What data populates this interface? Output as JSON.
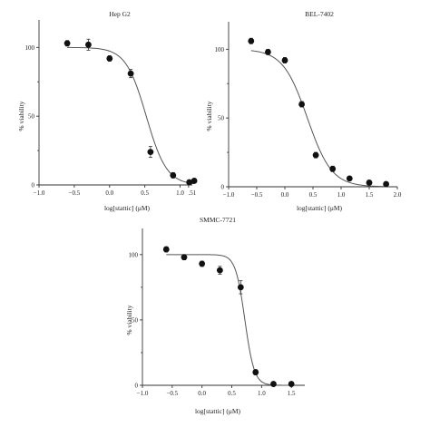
{
  "chart_data": [
    {
      "type": "scatter",
      "title": "Hep G2",
      "xlabel": "log[stattic] (μM)",
      "ylabel": "% viability",
      "xlim": [
        -1.0,
        1.25
      ],
      "ylim": [
        0,
        120
      ],
      "xticks": [
        -1.0,
        -0.5,
        0.0,
        0.5,
        1.0
      ],
      "xtick_labels": [
        "−1.0",
        "−0.5",
        "0.0",
        "0.5",
        "1.0"
      ],
      "extra_tick_label": ".51",
      "yticks": [
        0,
        50,
        100
      ],
      "series": [
        {
          "x": [
            -0.6,
            -0.3,
            0.0,
            0.3,
            0.58,
            0.9,
            1.13,
            1.2
          ],
          "y": [
            103,
            102,
            92,
            81,
            24,
            7,
            2,
            3
          ],
          "err": [
            2,
            4,
            2,
            3,
            4,
            2,
            1,
            1
          ]
        }
      ],
      "fit": {
        "top": 100,
        "bottom": 0,
        "logIC50": 0.52,
        "hill": 3.0
      },
      "grid": false
    },
    {
      "type": "scatter",
      "title": "BEL-7402",
      "xlabel": "log[stattic] (μM)",
      "ylabel": "% viability",
      "xlim": [
        -1.0,
        2.0
      ],
      "ylim": [
        0,
        120
      ],
      "xticks": [
        -1.0,
        -0.5,
        0.0,
        0.5,
        1.0,
        1.5,
        2.0
      ],
      "xtick_labels": [
        "−1.0",
        "−0.5",
        "0.0",
        "0.5",
        "1.0",
        "1.5",
        "2.0"
      ],
      "yticks": [
        0,
        50,
        100
      ],
      "series": [
        {
          "x": [
            -0.6,
            -0.3,
            0.0,
            0.3,
            0.55,
            0.85,
            1.15,
            1.5,
            1.8
          ],
          "y": [
            106,
            98,
            92,
            60,
            23,
            13,
            6,
            3,
            2
          ],
          "err": [
            2,
            2,
            2,
            2,
            2,
            2,
            1,
            1,
            1
          ]
        }
      ],
      "fit": {
        "top": 100,
        "bottom": 0,
        "logIC50": 0.4,
        "hill": 2.0
      },
      "grid": false
    },
    {
      "type": "scatter",
      "title": "SMMC-7721",
      "xlabel": "log[stattic] (μM)",
      "ylabel": "% viability",
      "xlim": [
        -1.0,
        2.0
      ],
      "ylim": [
        0,
        120
      ],
      "xticks": [
        -1.0,
        -0.5,
        0.0,
        0.5,
        1.0,
        1.5
      ],
      "xtick_labels": [
        "−1.0",
        "−0.5",
        "0.0",
        "0.5",
        "1.0",
        "1.5"
      ],
      "yticks": [
        0,
        50,
        100
      ],
      "series": [
        {
          "x": [
            -0.6,
            -0.3,
            0.0,
            0.3,
            0.65,
            0.9,
            1.2,
            1.5
          ],
          "y": [
            104,
            98,
            93,
            88,
            75,
            10,
            1,
            1
          ],
          "err": [
            2,
            2,
            2,
            3,
            5,
            2,
            1,
            1
          ]
        }
      ],
      "fit": {
        "top": 100,
        "bottom": 0,
        "logIC50": 0.72,
        "hill": 5.5
      },
      "grid": false
    }
  ]
}
